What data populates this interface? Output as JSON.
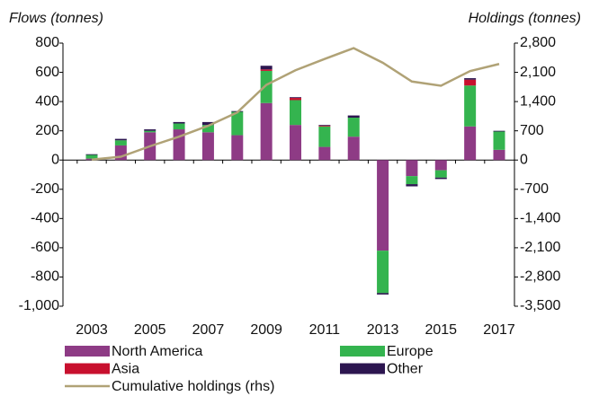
{
  "chart_data": {
    "type": "bar",
    "stacked": true,
    "y_label": "Flows (tonnes)",
    "y2_label": "Holdings (tonnes)",
    "categories": [
      "2003",
      null,
      "2005",
      null,
      "2007",
      null,
      "2009",
      null,
      "2011",
      null,
      "2013",
      null,
      "2015",
      null,
      "2017"
    ],
    "series": [
      {
        "name": "North America",
        "color": "#8e3b85",
        "values": [
          10,
          100,
          190,
          210,
          190,
          170,
          390,
          240,
          90,
          160,
          -620,
          -110,
          -70,
          230,
          70
        ]
      },
      {
        "name": "Europe",
        "color": "#34b44f",
        "values": [
          25,
          35,
          10,
          40,
          50,
          160,
          220,
          170,
          140,
          130,
          -290,
          -55,
          -50,
          280,
          125
        ]
      },
      {
        "name": "Asia",
        "color": "#c8102e",
        "values": [
          0,
          0,
          0,
          0,
          0,
          0,
          10,
          15,
          5,
          0,
          0,
          0,
          0,
          40,
          0
        ]
      },
      {
        "name": "Other",
        "color": "#2d1650",
        "values": [
          5,
          10,
          10,
          10,
          20,
          5,
          25,
          5,
          5,
          15,
          -10,
          -15,
          -10,
          10,
          5
        ]
      },
      {
        "name": "Cumulative holdings (rhs)",
        "color": "#b0a276",
        "type": "line",
        "axis": "y2",
        "values": [
          10,
          80,
          330,
          560,
          820,
          1140,
          1800,
          2150,
          2420,
          2680,
          2330,
          1880,
          1780,
          2130,
          2300
        ]
      }
    ],
    "ylim": [
      -1000,
      800
    ],
    "yticks": [
      {
        "value": -1000,
        "label": "-1,000"
      },
      -800,
      -600,
      -400,
      -200,
      0,
      200,
      400,
      600,
      800
    ],
    "y2lim": [
      -3500,
      2800
    ],
    "y2ticks": [
      {
        "value": -3500,
        "label": "-3,500"
      },
      {
        "value": -2800,
        "label": "-2,800"
      },
      {
        "value": -2100,
        "label": "-2,100"
      },
      {
        "value": -1400,
        "label": "-1,400"
      },
      -700,
      0,
      700,
      {
        "value": 1400,
        "label": "1,400"
      },
      {
        "value": 2100,
        "label": "2,100"
      },
      {
        "value": 2800,
        "label": "2,800"
      }
    ],
    "grid": false,
    "legend": "bottom"
  }
}
